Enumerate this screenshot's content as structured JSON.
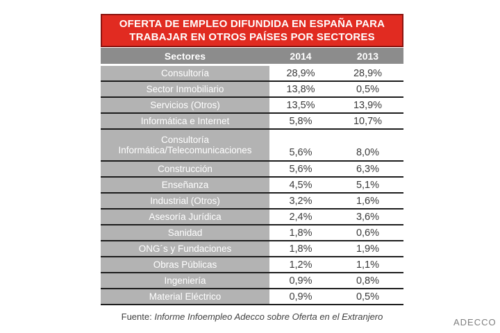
{
  "title": {
    "line1": "OFERTA DE EMPLEO DIFUNDIDA EN ESPAÑA PARA",
    "line2": "TRABAJAR EN OTROS PAÍSES POR SECTORES"
  },
  "table": {
    "headers": {
      "sector": "Sectores",
      "col2014": "2014",
      "col2013": "2013"
    },
    "rows": [
      {
        "sector": "Consultoría",
        "y2014": "28,9%",
        "y2013": "28,9%"
      },
      {
        "sector": "Sector Inmobiliario",
        "y2014": "13,8%",
        "y2013": "0,5%"
      },
      {
        "sector": "Servicios (Otros)",
        "y2014": "13,5%",
        "y2013": "13,9%"
      },
      {
        "sector": "Informática e Internet",
        "y2014": "5,8%",
        "y2013": "10,7%"
      },
      {
        "sector": "Consultoría\nInformática/Telecomunicaciones",
        "y2014": "5,6%",
        "y2013": "8,0%"
      },
      {
        "sector": "Construcción",
        "y2014": "5,6%",
        "y2013": "6,3%"
      },
      {
        "sector": "Enseñanza",
        "y2014": "4,5%",
        "y2013": "5,1%"
      },
      {
        "sector": "Industrial (Otros)",
        "y2014": "3,2%",
        "y2013": "1,6%"
      },
      {
        "sector": "Asesoría Jurídica",
        "y2014": "2,4%",
        "y2013": "3,6%"
      },
      {
        "sector": "Sanidad",
        "y2014": "1,8%",
        "y2013": "0,6%"
      },
      {
        "sector": "ONG´s y Fundaciones",
        "y2014": "1,8%",
        "y2013": "1,9%"
      },
      {
        "sector": "Obras Públicas",
        "y2014": "1,2%",
        "y2013": "1,1%"
      },
      {
        "sector": "Ingeniería",
        "y2014": "0,9%",
        "y2013": "0,8%"
      },
      {
        "sector": "Material Eléctrico",
        "y2014": "0,9%",
        "y2013": "0,5%"
      }
    ]
  },
  "footer": {
    "source_prefix": "Fuente:",
    "source_text": "Informe Infoempleo Adecco sobre Oferta en el Extranjero",
    "brand": "ADECCO"
  },
  "colors": {
    "header_red": "#e12b21",
    "header_red_border": "#8c1410",
    "header_gray": "#8c8c8c",
    "row_gray": "#b3b3b3",
    "separator_black": "#1b1b1b",
    "value_text": "#3a3a3a"
  },
  "chart_data": {
    "type": "table",
    "title": "OFERTA DE EMPLEO DIFUNDIDA EN ESPAÑA PARA TRABAJAR EN OTROS PAÍSES POR SECTORES",
    "categories": [
      "Consultoría",
      "Sector Inmobiliario",
      "Servicios (Otros)",
      "Informática e Internet",
      "Consultoría Informática/Telecomunicaciones",
      "Construcción",
      "Enseñanza",
      "Industrial (Otros)",
      "Asesoría Jurídica",
      "Sanidad",
      "ONG´s y Fundaciones",
      "Obras Públicas",
      "Ingeniería",
      "Material Eléctrico"
    ],
    "series": [
      {
        "name": "2014",
        "values": [
          28.9,
          13.8,
          13.5,
          5.8,
          5.6,
          5.6,
          4.5,
          3.2,
          2.4,
          1.8,
          1.8,
          1.2,
          0.9,
          0.9
        ]
      },
      {
        "name": "2013",
        "values": [
          28.9,
          0.5,
          13.9,
          10.7,
          8.0,
          6.3,
          5.1,
          1.6,
          3.6,
          0.6,
          1.9,
          1.1,
          0.8,
          0.5
        ]
      }
    ],
    "unit": "%",
    "source": "Informe Infoempleo Adecco sobre Oferta en el Extranjero"
  }
}
